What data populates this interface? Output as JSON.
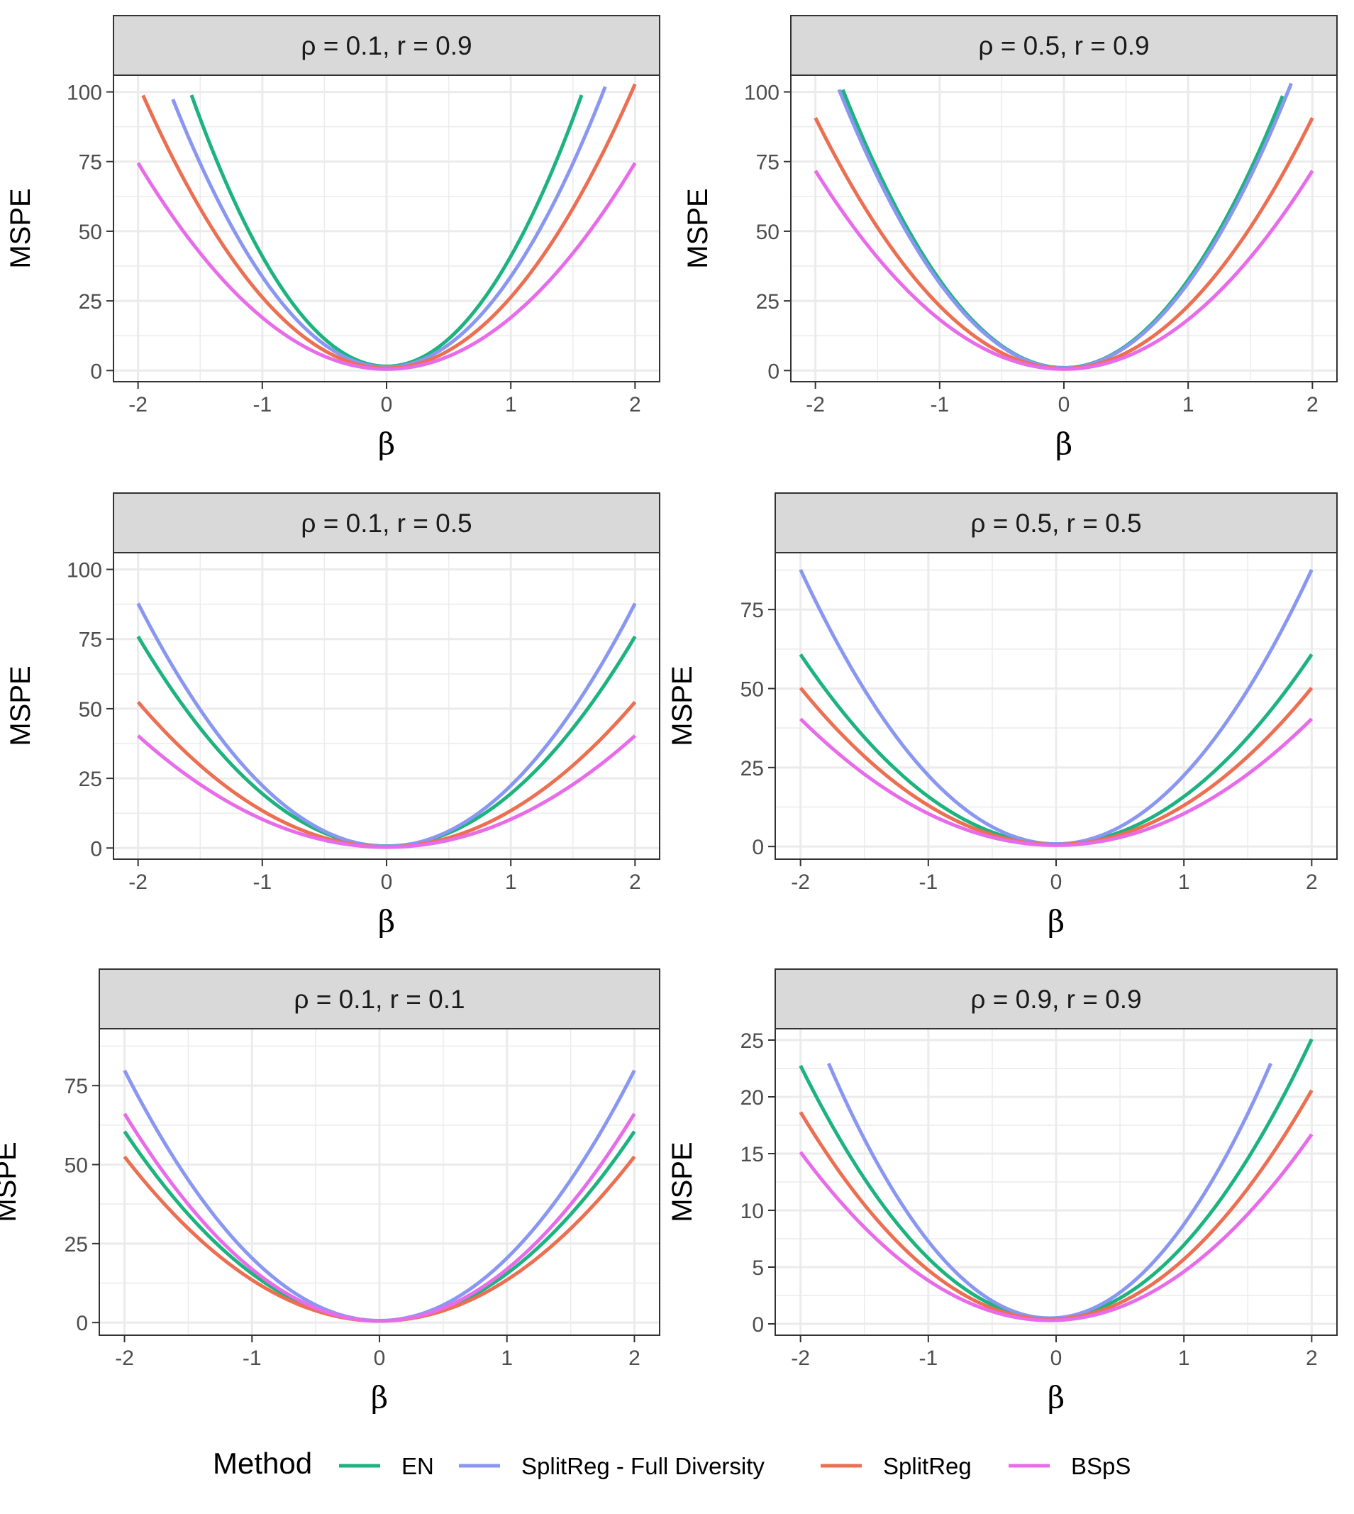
{
  "chart_data": [
    {
      "type": "line",
      "title": "ρ = 0.1,  r = 0.9",
      "xlabel": "β",
      "ylabel": "MSPE",
      "xlim": [
        -2,
        2
      ],
      "ylim": [
        -4,
        106
      ],
      "xticks": [
        -2,
        -1,
        0,
        1,
        2
      ],
      "xtick_labels": [
        "-2",
        "-1",
        "0",
        "1",
        "2"
      ],
      "yticks": [
        0,
        25,
        50,
        75,
        100
      ],
      "ytick_labels": [
        "0",
        "25",
        "50",
        "75",
        "100"
      ],
      "grid": true,
      "series": [
        {
          "name": "EN",
          "center": 0,
          "vertex": 1.5,
          "curvature": 39.5,
          "x_range": [
            -1.57,
            1.57
          ]
        },
        {
          "name": "SplitReg - Full Diversity",
          "center": 0,
          "vertex": 1.2,
          "curvature": 32.5,
          "x_range": [
            -1.72,
            1.76
          ]
        },
        {
          "name": "SplitReg",
          "center": 0,
          "vertex": 0.8,
          "curvature": 25.5,
          "x_range": [
            -1.96,
            2.0
          ]
        },
        {
          "name": "BSpS",
          "center": 0,
          "vertex": 0.5,
          "curvature": 18.5,
          "x_range": [
            -2.0,
            2.0
          ]
        }
      ]
    },
    {
      "type": "line",
      "title": "ρ = 0.5,  r = 0.9",
      "xlabel": "β",
      "ylabel": "MSPE",
      "xlim": [
        -2,
        2
      ],
      "ylim": [
        -4,
        106
      ],
      "xticks": [
        -2,
        -1,
        0,
        1,
        2
      ],
      "xtick_labels": [
        "-2",
        "-1",
        "0",
        "1",
        "2"
      ],
      "yticks": [
        0,
        25,
        50,
        75,
        100
      ],
      "ytick_labels": [
        "0",
        "25",
        "50",
        "75",
        "100"
      ],
      "grid": true,
      "series": [
        {
          "name": "EN",
          "center": 0,
          "vertex": 1.0,
          "curvature": 31.5,
          "x_range": [
            -1.78,
            1.76
          ]
        },
        {
          "name": "SplitReg - Full Diversity",
          "center": 0,
          "vertex": 0.9,
          "curvature": 30.5,
          "x_range": [
            -1.81,
            1.83
          ]
        },
        {
          "name": "SplitReg",
          "center": 0,
          "vertex": 0.7,
          "curvature": 22.5,
          "x_range": [
            -2.0,
            2.0
          ]
        },
        {
          "name": "BSpS",
          "center": 0,
          "vertex": 0.5,
          "curvature": 17.8,
          "x_range": [
            -2.0,
            2.0
          ]
        }
      ]
    },
    {
      "type": "line",
      "title": "ρ = 0.1,  r = 0.5",
      "xlabel": "β",
      "ylabel": "MSPE",
      "xlim": [
        -2,
        2
      ],
      "ylim": [
        -4,
        106
      ],
      "xticks": [
        -2,
        -1,
        0,
        1,
        2
      ],
      "xtick_labels": [
        "-2",
        "-1",
        "0",
        "1",
        "2"
      ],
      "yticks": [
        0,
        25,
        50,
        75,
        100
      ],
      "ytick_labels": [
        "0",
        "25",
        "50",
        "75",
        "100"
      ],
      "grid": true,
      "series": [
        {
          "name": "EN",
          "center": 0,
          "vertex": 0.7,
          "curvature": 18.8,
          "x_range": [
            -2.0,
            2.0
          ]
        },
        {
          "name": "SplitReg - Full Diversity",
          "center": 0,
          "vertex": 0.6,
          "curvature": 21.8,
          "x_range": [
            -2.0,
            2.0
          ]
        },
        {
          "name": "SplitReg",
          "center": 0,
          "vertex": 0.4,
          "curvature": 13.0,
          "x_range": [
            -2.0,
            2.0
          ]
        },
        {
          "name": "BSpS",
          "center": 0,
          "vertex": 0.3,
          "curvature": 10.0,
          "x_range": [
            -2.0,
            2.0
          ]
        }
      ]
    },
    {
      "type": "line",
      "title": "ρ = 0.5,  r = 0.5",
      "xlabel": "β",
      "ylabel": "MSPE",
      "xlim": [
        -2,
        2
      ],
      "ylim": [
        -4,
        93
      ],
      "xticks": [
        -2,
        -1,
        0,
        1,
        2
      ],
      "xtick_labels": [
        "-2",
        "-1",
        "0",
        "1",
        "2"
      ],
      "yticks": [
        0,
        25,
        50,
        75
      ],
      "ytick_labels": [
        "0",
        "25",
        "50",
        "75"
      ],
      "grid": true,
      "series": [
        {
          "name": "EN",
          "center": 0,
          "vertex": 0.8,
          "curvature": 15.0,
          "x_range": [
            -2.0,
            2.0
          ]
        },
        {
          "name": "SplitReg - Full Diversity",
          "center": 0,
          "vertex": 0.8,
          "curvature": 21.7,
          "x_range": [
            -2.0,
            2.0
          ]
        },
        {
          "name": "SplitReg",
          "center": 0,
          "vertex": 0.6,
          "curvature": 12.4,
          "x_range": [
            -2.0,
            2.0
          ]
        },
        {
          "name": "BSpS",
          "center": 0,
          "vertex": 0.4,
          "curvature": 10.0,
          "x_range": [
            -2.0,
            2.0
          ]
        }
      ]
    },
    {
      "type": "line",
      "title": "ρ = 0.1,  r = 0.1",
      "xlabel": "β",
      "ylabel": "MSPE",
      "xlim": [
        -2,
        2
      ],
      "ylim": [
        -4,
        93
      ],
      "xticks": [
        -2,
        -1,
        0,
        1,
        2
      ],
      "xtick_labels": [
        "-2",
        "-1",
        "0",
        "1",
        "2"
      ],
      "yticks": [
        0,
        25,
        50,
        75
      ],
      "ytick_labels": [
        "0",
        "25",
        "50",
        "75"
      ],
      "grid": true,
      "series": [
        {
          "name": "EN",
          "center": 0,
          "vertex": 0.5,
          "curvature": 15.0,
          "x_range": [
            -2.0,
            2.0
          ]
        },
        {
          "name": "SplitReg - Full Diversity",
          "center": 0,
          "vertex": 0.6,
          "curvature": 19.8,
          "x_range": [
            -2.0,
            2.0
          ]
        },
        {
          "name": "SplitReg",
          "center": 0,
          "vertex": 0.5,
          "curvature": 13.0,
          "x_range": [
            -2.0,
            2.0
          ]
        },
        {
          "name": "BSpS",
          "center": 0,
          "vertex": 0.5,
          "curvature": 16.4,
          "x_range": [
            -2.0,
            2.0
          ]
        }
      ]
    },
    {
      "type": "line",
      "title": "ρ = 0.9,  r = 0.9",
      "xlabel": "β",
      "ylabel": "MSPE",
      "xlim": [
        -2,
        2
      ],
      "ylim": [
        -1,
        26
      ],
      "xticks": [
        -2,
        -1,
        0,
        1,
        2
      ],
      "xtick_labels": [
        "-2",
        "-1",
        "0",
        "1",
        "2"
      ],
      "yticks": [
        0,
        5,
        10,
        15,
        20,
        25
      ],
      "ytick_labels": [
        "0",
        "5",
        "10",
        "15",
        "20",
        "25"
      ],
      "grid": true,
      "series": [
        {
          "name": "EN",
          "center": -0.05,
          "vertex": 0.5,
          "curvature": 5.85,
          "x_range": [
            -2.0,
            2.0
          ]
        },
        {
          "name": "SplitReg - Full Diversity",
          "center": -0.05,
          "vertex": 0.5,
          "curvature": 7.5,
          "x_range": [
            -1.78,
            1.68
          ]
        },
        {
          "name": "SplitReg",
          "center": -0.05,
          "vertex": 0.4,
          "curvature": 4.8,
          "x_range": [
            -2.0,
            2.0
          ]
        },
        {
          "name": "BSpS",
          "center": -0.05,
          "vertex": 0.3,
          "curvature": 3.9,
          "x_range": [
            -2.0,
            2.0
          ]
        }
      ]
    }
  ],
  "legend": {
    "title": "Method",
    "items": [
      {
        "label": "EN",
        "color": "#1db37e"
      },
      {
        "label": "SplitReg - Full Diversity",
        "color": "#8a97f2"
      },
      {
        "label": "SplitReg",
        "color": "#ec6f52"
      },
      {
        "label": "BSpS",
        "color": "#e86cea"
      }
    ]
  },
  "colors": {
    "EN": "#1db37e",
    "SplitReg - Full Diversity": "#8a97f2",
    "SplitReg": "#ec6f52",
    "BSpS": "#e86cea",
    "strip_fill": "#d9d9d9",
    "grid": "#ebebeb",
    "panel_border": "#333333"
  }
}
